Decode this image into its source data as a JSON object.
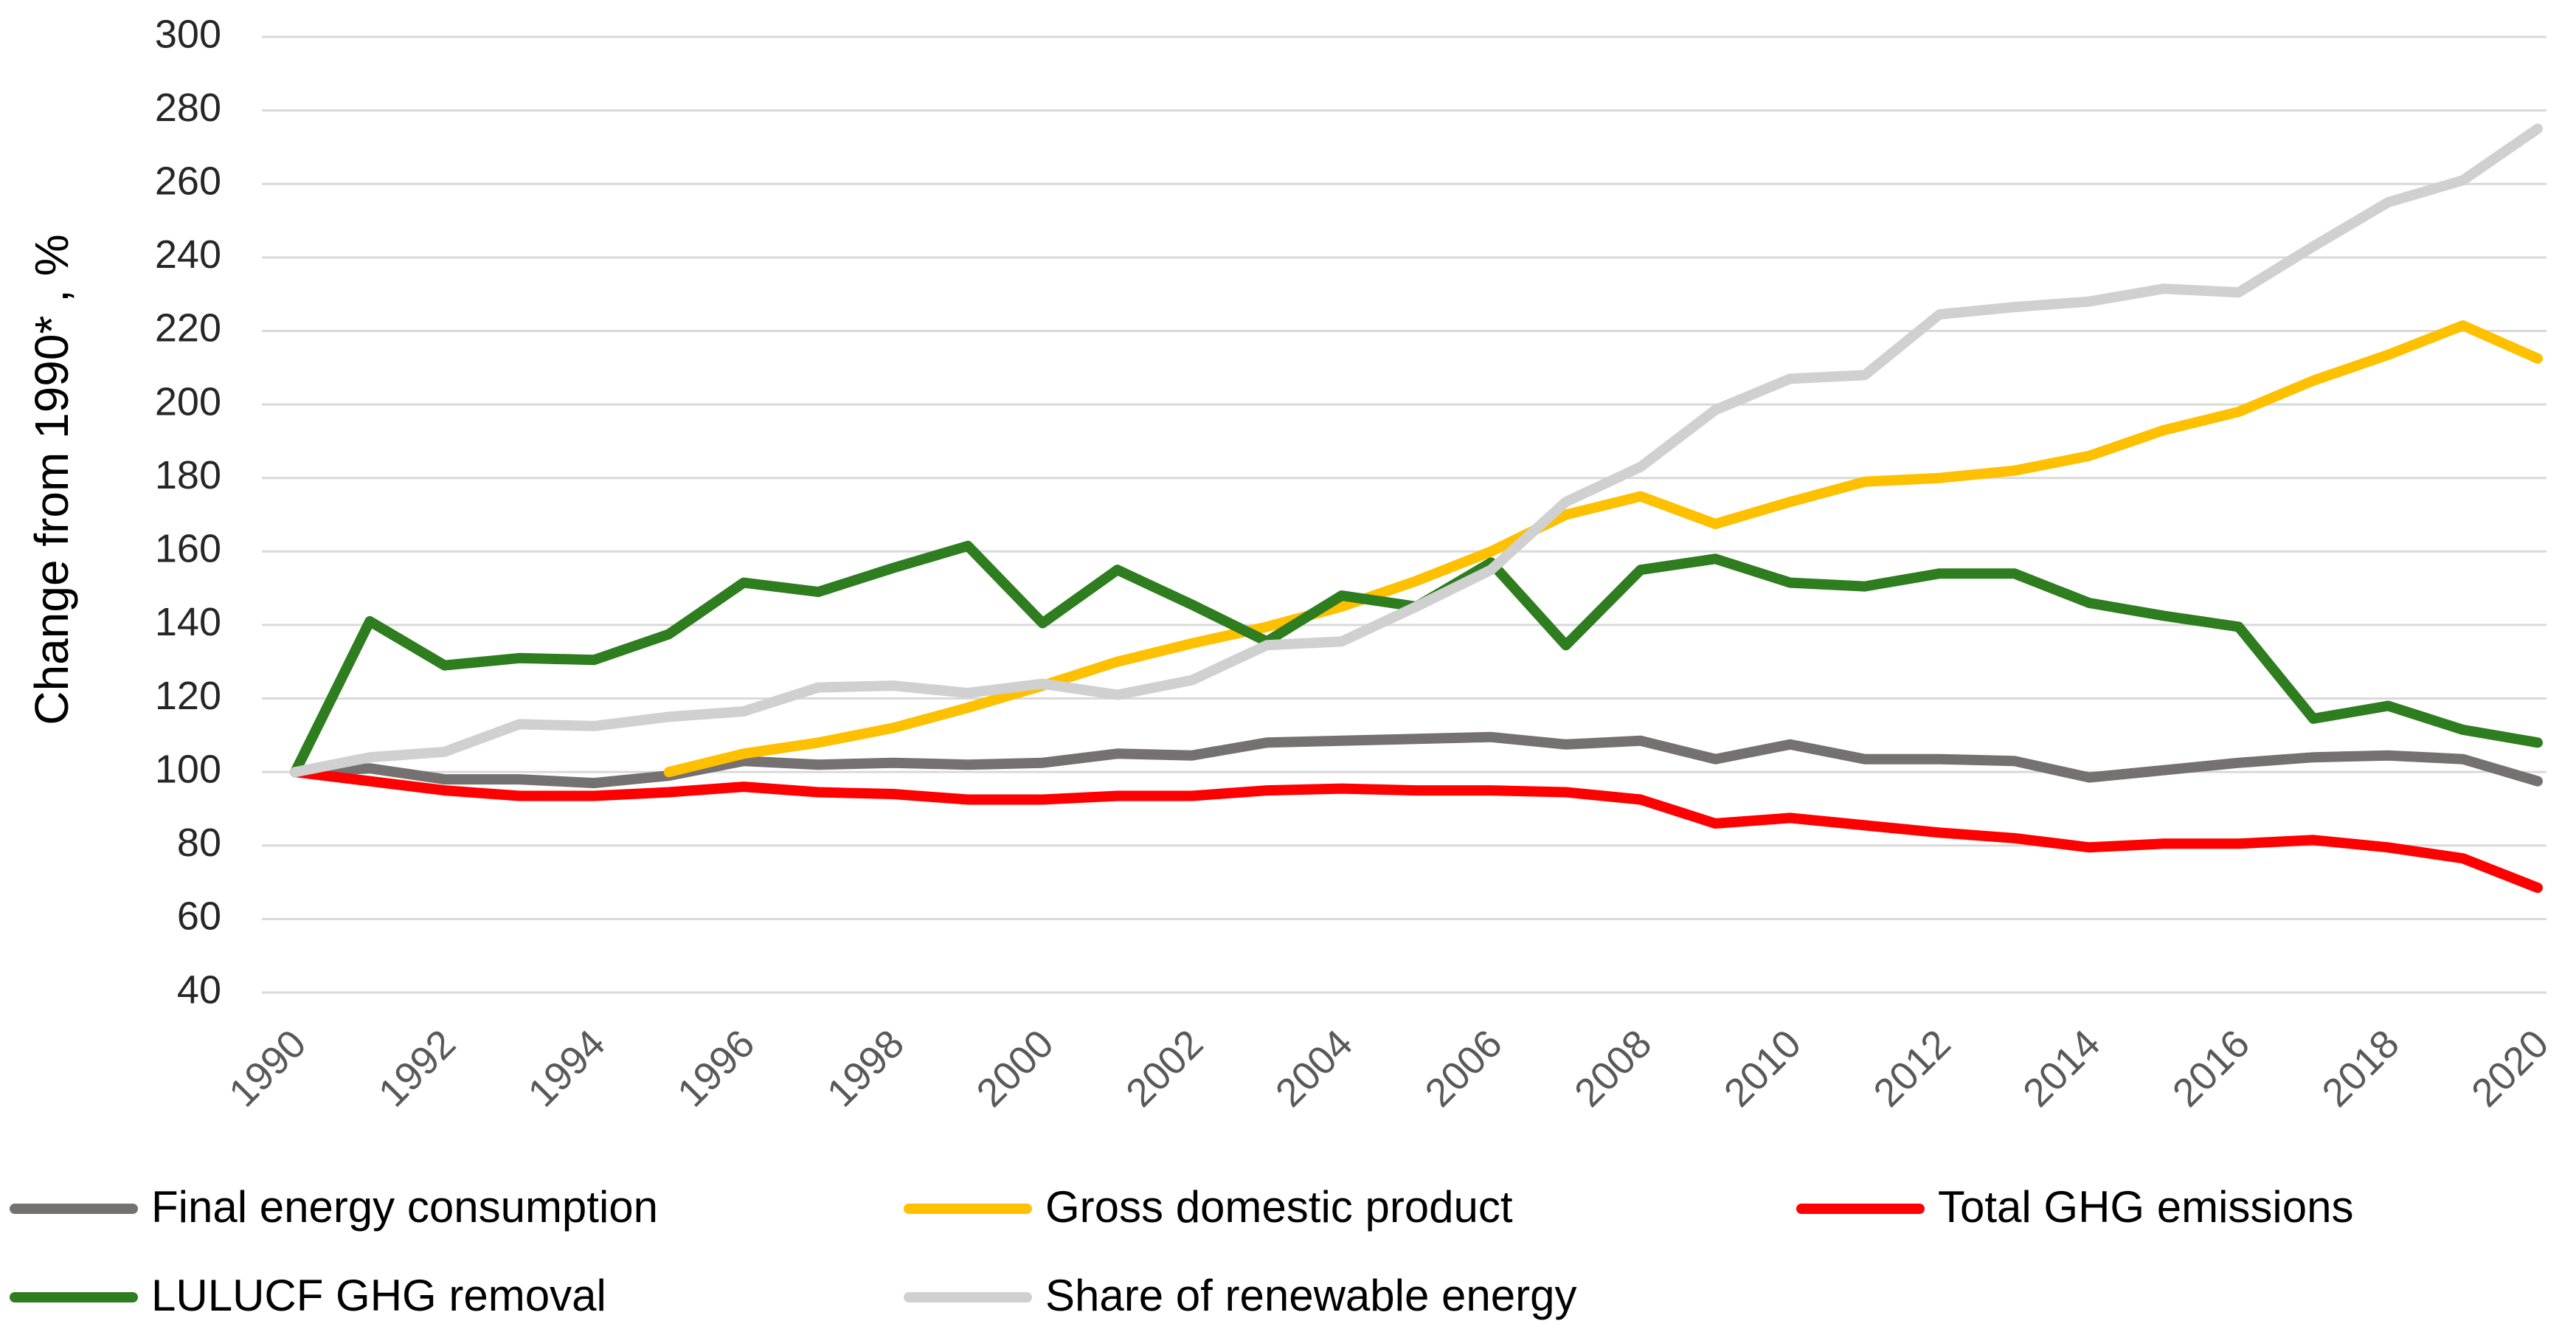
{
  "chart_data": {
    "type": "line",
    "title": "",
    "xlabel": "",
    "ylabel": "Change from 1990* , %",
    "ylim": [
      40,
      300
    ],
    "yticks": [
      "40",
      "60",
      "80",
      "100",
      "120",
      "140",
      "160",
      "180",
      "200",
      "220",
      "240",
      "260",
      "280",
      "300"
    ],
    "xlim": [
      1990,
      2020
    ],
    "xticks": [
      "1990",
      "1992",
      "1994",
      "1996",
      "1998",
      "2000",
      "2002",
      "2004",
      "2006",
      "2008",
      "2010",
      "2012",
      "2014",
      "2016",
      "2018",
      "2020"
    ],
    "grid": "horizontal",
    "legend_position": "bottom",
    "x": [
      1990,
      1991,
      1992,
      1993,
      1994,
      1995,
      1996,
      1997,
      1998,
      1999,
      2000,
      2001,
      2002,
      2003,
      2004,
      2005,
      2006,
      2007,
      2008,
      2009,
      2010,
      2011,
      2012,
      2013,
      2014,
      2015,
      2016,
      2017,
      2018,
      2019,
      2020
    ],
    "series": [
      {
        "key": "final_energy",
        "name": "Final energy consumption",
        "color": "#767171",
        "values": [
          100,
          101,
          98,
          98,
          97,
          99,
          103,
          102,
          102.5,
          102,
          102.5,
          105,
          104.5,
          108,
          108.5,
          109,
          109.5,
          107.5,
          108.5,
          103.5,
          107.5,
          103.5,
          103.5,
          103,
          98.5,
          100.5,
          102.5,
          104,
          104.5,
          103.5,
          97.5
        ]
      },
      {
        "key": "gdp",
        "name": "Gross domestic product",
        "color": "#FFC000",
        "values": [
          null,
          null,
          null,
          null,
          null,
          100,
          105,
          108,
          112,
          117.5,
          123.5,
          130,
          135,
          139.5,
          145,
          152,
          160,
          170,
          175,
          167.5,
          173.5,
          179,
          180,
          182,
          186,
          193,
          198,
          206.5,
          213.5,
          221.5,
          212.5
        ]
      },
      {
        "key": "ghg_emissions",
        "name": "Total GHG emissions",
        "color": "#FF0000",
        "values": [
          100,
          97.5,
          95,
          93.5,
          93.5,
          94.5,
          96,
          94.5,
          94,
          92.5,
          92.5,
          93.5,
          93.5,
          95,
          95.5,
          95,
          95,
          94.5,
          92.5,
          86,
          87.5,
          85.5,
          83.5,
          82,
          79.5,
          80.5,
          80.5,
          81.5,
          79.5,
          76.5,
          68.5
        ]
      },
      {
        "key": "lulucf",
        "name": "LULUCF GHG removal",
        "color": "#2E7D1F",
        "values": [
          100,
          141,
          129,
          131,
          130.5,
          137.5,
          151.5,
          149,
          155.5,
          161.5,
          140.5,
          155,
          145.5,
          135.5,
          148,
          145,
          157,
          134.5,
          155,
          158,
          151.5,
          150.5,
          154,
          154,
          146,
          142.5,
          139.5,
          114.5,
          118,
          111.5,
          108
        ]
      },
      {
        "key": "renewables",
        "name": "Share of renewable energy",
        "color": "#D0D0D0",
        "values": [
          100,
          104,
          105.5,
          113,
          112.5,
          115,
          116.5,
          123,
          123.5,
          121.5,
          124,
          121,
          125,
          134.5,
          135.5,
          145,
          155,
          173.5,
          183,
          198.5,
          207,
          208,
          224.5,
          226.5,
          228,
          231.5,
          230.5,
          243,
          255,
          261,
          275
        ]
      }
    ]
  }
}
